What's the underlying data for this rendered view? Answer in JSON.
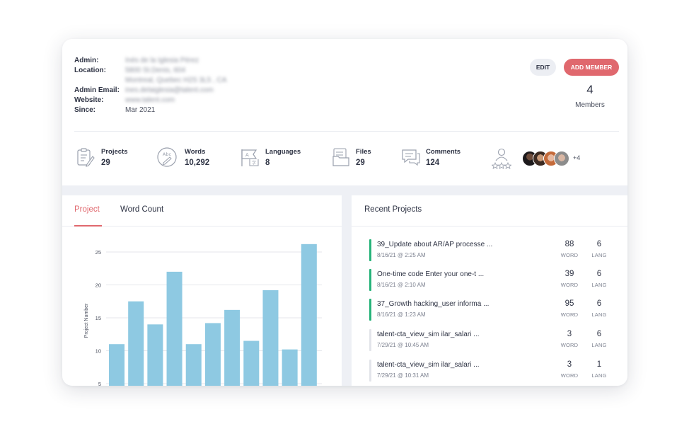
{
  "profile": {
    "admin_label": "Admin:",
    "admin_value": "Inés de la Iglesia Pérez",
    "location_label": "Location:",
    "location_line1": "5800 St.Denis, 604",
    "location_line2": "Montreal, Quebec H2S 3L5 , CA",
    "email_label": "Admin Email:",
    "email_value": "ines.delaiglesia@talent.com",
    "website_label": "Website:",
    "website_value": "www.talent.com",
    "since_label": "Since:",
    "since_value": "Mar 2021"
  },
  "actions": {
    "edit": "EDIT",
    "add_member": "ADD MEMBER"
  },
  "members": {
    "count": "4",
    "label": "Members"
  },
  "stats": [
    {
      "label": "Projects",
      "value": "29",
      "icon": "clipboard-icon"
    },
    {
      "label": "Words",
      "value": "10,292",
      "icon": "abc-pencil-icon"
    },
    {
      "label": "Languages",
      "value": "8",
      "icon": "language-flag-icon"
    },
    {
      "label": "Files",
      "value": "29",
      "icon": "files-icon"
    },
    {
      "label": "Comments",
      "value": "124",
      "icon": "comments-icon"
    }
  ],
  "team": {
    "more": "+4",
    "icon": "member-rating-icon"
  },
  "chart_tabs": {
    "project": "Project",
    "word_count": "Word Count"
  },
  "chart_data": {
    "type": "bar",
    "ylabel": "Project Number",
    "yticks": [
      5,
      10,
      15,
      20,
      25
    ],
    "values": [
      11,
      17.5,
      14,
      22,
      11,
      14.2,
      16.2,
      11.5,
      19.2,
      10.2,
      26.2
    ],
    "color": "#8ec9e2",
    "grid": true
  },
  "recent": {
    "title": "Recent Projects",
    "word_unit": "WORD",
    "lang_unit": "LANG",
    "items": [
      {
        "name": "39_Update about AR/AP processe ...",
        "date": "8/16/21 @ 2:25 AM",
        "words": "88",
        "langs": "6",
        "status_color": "#27b37a"
      },
      {
        "name": "One-time code Enter your one-t ...",
        "date": "8/16/21 @ 2:10 AM",
        "words": "39",
        "langs": "6",
        "status_color": "#27b37a"
      },
      {
        "name": "37_Growth hacking_user informa ...",
        "date": "8/16/21 @ 1:23 AM",
        "words": "95",
        "langs": "6",
        "status_color": "#27b37a"
      },
      {
        "name": "talent-cta_view_sim ilar_salari ...",
        "date": "7/29/21 @ 10:45 AM",
        "words": "3",
        "langs": "6",
        "status_color": "#e3e5ea"
      },
      {
        "name": "talent-cta_view_sim ilar_salari ...",
        "date": "7/29/21 @ 10:31 AM",
        "words": "3",
        "langs": "1",
        "status_color": "#e3e5ea"
      }
    ]
  }
}
